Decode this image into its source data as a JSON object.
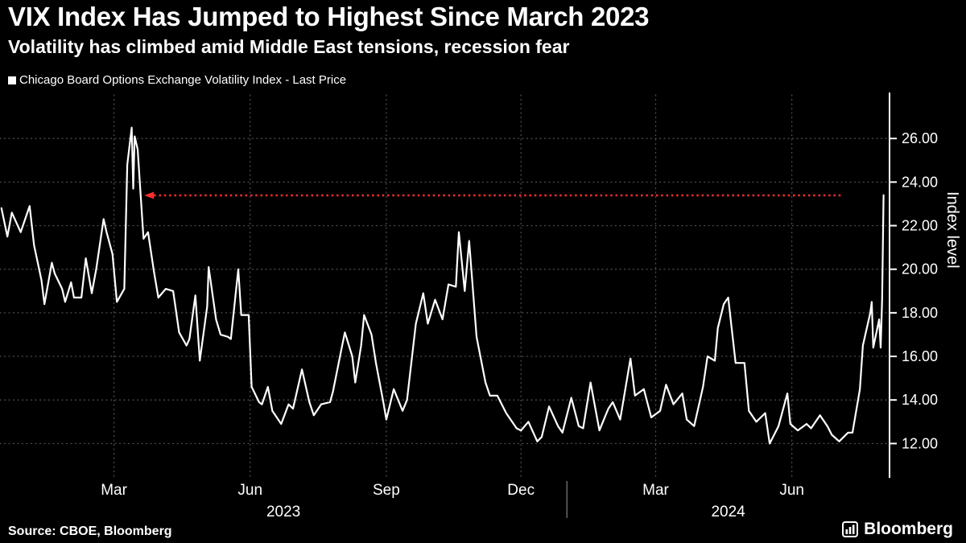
{
  "header": {
    "title": "VIX Index Has Jumped to Highest Since March 2023",
    "subtitle": "Volatility has climbed amid Middle East tensions, recession fear",
    "legend_marker": "",
    "legend_label": "Chicago Board Options Exchange Volatility Index - Last Price"
  },
  "footer": {
    "source": "Source: CBOE, Bloomberg",
    "brand": "Bloomberg"
  },
  "colors": {
    "background": "#000000",
    "text": "#ffffff",
    "grid": "#4d4d4d",
    "line": "#ffffff",
    "axis": "#ffffff",
    "reference": "#ff2e2e"
  },
  "chart_data": {
    "type": "line",
    "title": "VIX Index Has Jumped to Highest Since March 2023",
    "subtitle": "Volatility has climbed amid Middle East tensions, recession fear",
    "xlabel": "",
    "ylabel": "Index level",
    "ylim": [
      10.5,
      28
    ],
    "yticks": [
      12,
      14,
      16,
      18,
      20,
      22,
      24,
      26
    ],
    "ytick_labels": [
      "12.00",
      "14.00",
      "16.00",
      "18.00",
      "20.00",
      "22.00",
      "24.00",
      "26.00"
    ],
    "x_domain": [
      "2022-12-14",
      "2024-08-06"
    ],
    "x_gridlines": [
      "2023-03-01",
      "2023-06-01",
      "2023-09-01",
      "2023-12-01",
      "2024-03-01",
      "2024-06-01"
    ],
    "x_tick_labels": [
      "Mar",
      "Jun",
      "Sep",
      "Dec",
      "Mar",
      "Jun"
    ],
    "year_separator": "2024-01-01",
    "year_labels": [
      "2023",
      "2024"
    ],
    "grid": true,
    "legend_position": "top-left",
    "reference_line": {
      "value": 23.39,
      "start": "2023-03-28",
      "end": "2024-07-06",
      "color": "#ff2e2e",
      "style": "dotted",
      "arrow": "left"
    },
    "series": [
      {
        "name": "Chicago Board Options Exchange Volatility Index - Last Price",
        "color": "#ffffff",
        "points": [
          [
            "2022-12-15",
            22.8
          ],
          [
            "2022-12-19",
            21.5
          ],
          [
            "2022-12-22",
            22.6
          ],
          [
            "2022-12-28",
            21.7
          ],
          [
            "2023-01-03",
            22.9
          ],
          [
            "2023-01-06",
            21.1
          ],
          [
            "2023-01-11",
            19.5
          ],
          [
            "2023-01-13",
            18.4
          ],
          [
            "2023-01-18",
            20.3
          ],
          [
            "2023-01-20",
            19.8
          ],
          [
            "2023-01-25",
            19.1
          ],
          [
            "2023-01-27",
            18.5
          ],
          [
            "2023-01-31",
            19.4
          ],
          [
            "2023-02-02",
            18.7
          ],
          [
            "2023-02-07",
            18.7
          ],
          [
            "2023-02-10",
            20.5
          ],
          [
            "2023-02-14",
            18.9
          ],
          [
            "2023-02-17",
            20.0
          ],
          [
            "2023-02-22",
            22.3
          ],
          [
            "2023-02-24",
            21.7
          ],
          [
            "2023-02-28",
            20.7
          ],
          [
            "2023-03-03",
            18.5
          ],
          [
            "2023-03-08",
            19.1
          ],
          [
            "2023-03-10",
            24.8
          ],
          [
            "2023-03-13",
            26.5
          ],
          [
            "2023-03-14",
            23.7
          ],
          [
            "2023-03-15",
            26.1
          ],
          [
            "2023-03-17",
            25.5
          ],
          [
            "2023-03-21",
            21.4
          ],
          [
            "2023-03-24",
            21.7
          ],
          [
            "2023-03-28",
            19.9
          ],
          [
            "2023-03-31",
            18.7
          ],
          [
            "2023-04-05",
            19.1
          ],
          [
            "2023-04-10",
            19.0
          ],
          [
            "2023-04-14",
            17.1
          ],
          [
            "2023-04-19",
            16.5
          ],
          [
            "2023-04-21",
            16.8
          ],
          [
            "2023-04-25",
            18.8
          ],
          [
            "2023-04-28",
            15.8
          ],
          [
            "2023-05-03",
            18.3
          ],
          [
            "2023-05-04",
            20.1
          ],
          [
            "2023-05-09",
            17.7
          ],
          [
            "2023-05-12",
            17.0
          ],
          [
            "2023-05-17",
            16.9
          ],
          [
            "2023-05-19",
            16.8
          ],
          [
            "2023-05-24",
            20.0
          ],
          [
            "2023-05-26",
            17.9
          ],
          [
            "2023-05-31",
            17.9
          ],
          [
            "2023-06-02",
            14.6
          ],
          [
            "2023-06-07",
            13.9
          ],
          [
            "2023-06-09",
            13.8
          ],
          [
            "2023-06-13",
            14.6
          ],
          [
            "2023-06-16",
            13.5
          ],
          [
            "2023-06-22",
            12.9
          ],
          [
            "2023-06-27",
            13.8
          ],
          [
            "2023-06-30",
            13.6
          ],
          [
            "2023-07-06",
            15.4
          ],
          [
            "2023-07-11",
            13.9
          ],
          [
            "2023-07-14",
            13.3
          ],
          [
            "2023-07-19",
            13.8
          ],
          [
            "2023-07-25",
            13.9
          ],
          [
            "2023-07-27",
            14.4
          ],
          [
            "2023-08-01",
            16.1
          ],
          [
            "2023-08-04",
            17.1
          ],
          [
            "2023-08-09",
            16.0
          ],
          [
            "2023-08-11",
            14.8
          ],
          [
            "2023-08-15",
            16.5
          ],
          [
            "2023-08-17",
            17.9
          ],
          [
            "2023-08-22",
            17.0
          ],
          [
            "2023-08-25",
            15.7
          ],
          [
            "2023-08-30",
            13.9
          ],
          [
            "2023-09-01",
            13.1
          ],
          [
            "2023-09-06",
            14.5
          ],
          [
            "2023-09-12",
            13.5
          ],
          [
            "2023-09-15",
            14.0
          ],
          [
            "2023-09-21",
            17.5
          ],
          [
            "2023-09-26",
            18.9
          ],
          [
            "2023-09-29",
            17.5
          ],
          [
            "2023-10-04",
            18.6
          ],
          [
            "2023-10-09",
            17.7
          ],
          [
            "2023-10-13",
            19.3
          ],
          [
            "2023-10-18",
            19.2
          ],
          [
            "2023-10-20",
            21.7
          ],
          [
            "2023-10-24",
            19.0
          ],
          [
            "2023-10-27",
            21.3
          ],
          [
            "2023-11-01",
            16.9
          ],
          [
            "2023-11-07",
            14.8
          ],
          [
            "2023-11-10",
            14.2
          ],
          [
            "2023-11-15",
            14.2
          ],
          [
            "2023-11-21",
            13.4
          ],
          [
            "2023-11-28",
            12.7
          ],
          [
            "2023-12-01",
            12.6
          ],
          [
            "2023-12-06",
            13.0
          ],
          [
            "2023-12-12",
            12.1
          ],
          [
            "2023-12-15",
            12.3
          ],
          [
            "2023-12-20",
            13.7
          ],
          [
            "2023-12-26",
            12.8
          ],
          [
            "2023-12-29",
            12.5
          ],
          [
            "2024-01-04",
            14.1
          ],
          [
            "2024-01-09",
            12.8
          ],
          [
            "2024-01-12",
            12.7
          ],
          [
            "2024-01-17",
            14.8
          ],
          [
            "2024-01-23",
            12.6
          ],
          [
            "2024-01-29",
            13.6
          ],
          [
            "2024-02-01",
            13.9
          ],
          [
            "2024-02-06",
            13.1
          ],
          [
            "2024-02-13",
            15.9
          ],
          [
            "2024-02-16",
            14.2
          ],
          [
            "2024-02-22",
            14.5
          ],
          [
            "2024-02-27",
            13.2
          ],
          [
            "2024-03-04",
            13.5
          ],
          [
            "2024-03-08",
            14.7
          ],
          [
            "2024-03-13",
            13.8
          ],
          [
            "2024-03-19",
            14.3
          ],
          [
            "2024-03-22",
            13.1
          ],
          [
            "2024-03-27",
            12.8
          ],
          [
            "2024-04-02",
            14.6
          ],
          [
            "2024-04-05",
            16.0
          ],
          [
            "2024-04-10",
            15.8
          ],
          [
            "2024-04-12",
            17.3
          ],
          [
            "2024-04-16",
            18.4
          ],
          [
            "2024-04-19",
            18.7
          ],
          [
            "2024-04-24",
            15.7
          ],
          [
            "2024-04-30",
            15.7
          ],
          [
            "2024-05-03",
            13.5
          ],
          [
            "2024-05-08",
            13.0
          ],
          [
            "2024-05-14",
            13.4
          ],
          [
            "2024-05-17",
            12.0
          ],
          [
            "2024-05-23",
            12.8
          ],
          [
            "2024-05-29",
            14.3
          ],
          [
            "2024-05-31",
            12.9
          ],
          [
            "2024-06-05",
            12.6
          ],
          [
            "2024-06-11",
            12.9
          ],
          [
            "2024-06-14",
            12.7
          ],
          [
            "2024-06-20",
            13.3
          ],
          [
            "2024-06-25",
            12.8
          ],
          [
            "2024-06-28",
            12.4
          ],
          [
            "2024-07-03",
            12.1
          ],
          [
            "2024-07-09",
            12.5
          ],
          [
            "2024-07-12",
            12.5
          ],
          [
            "2024-07-17",
            14.5
          ],
          [
            "2024-07-19",
            16.5
          ],
          [
            "2024-07-24",
            18.0
          ],
          [
            "2024-07-25",
            18.5
          ],
          [
            "2024-07-26",
            16.4
          ],
          [
            "2024-07-30",
            17.7
          ],
          [
            "2024-07-31",
            16.4
          ],
          [
            "2024-08-01",
            18.6
          ],
          [
            "2024-08-02",
            23.4
          ]
        ]
      }
    ]
  }
}
